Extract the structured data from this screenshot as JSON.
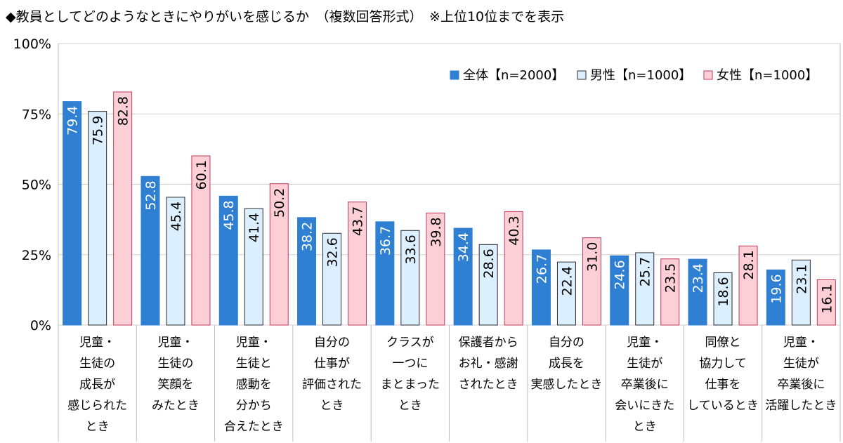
{
  "chart_data": {
    "type": "bar",
    "title": "◆教員としてどのようなときにやりがいを感じるか　（複数回答形式）　※上位10位までを表示",
    "ylim": [
      0,
      100
    ],
    "yticks": [
      {
        "value": 0,
        "label": "0%"
      },
      {
        "value": 25,
        "label": "25%"
      },
      {
        "value": 50,
        "label": "50%"
      },
      {
        "value": 75,
        "label": "75%"
      },
      {
        "value": 100,
        "label": "100%"
      }
    ],
    "categories": [
      "児童・\n生徒の\n成長が\n感じられた\nとき",
      "児童・\n生徒の\n笑顔を\nみたとき",
      "児童・\n生徒と\n感動を\n分かち\n合えたとき",
      "自分の\n仕事が\n評価された\nとき",
      "クラスが\n一つに\nまとまった\nとき",
      "保護者から\nお礼・感謝\nされたとき",
      "自分の\n成長を\n実感したとき",
      "児童・\n生徒が\n卒業後に\n会いにきた\nとき",
      "同僚と\n協力して\n仕事を\nしているとき",
      "児童・\n生徒が\n卒業後に\n活躍したとき"
    ],
    "series": [
      {
        "name": "全体【n=2000】",
        "color": "#2f7fd3",
        "stroke": "#2f7fd3",
        "label_color": "#ffffff",
        "values": [
          79.4,
          52.8,
          45.8,
          38.2,
          36.7,
          34.4,
          26.7,
          24.6,
          23.4,
          19.6
        ]
      },
      {
        "name": "男性【n=1000】",
        "color": "#dcefff",
        "stroke": "#2b2b2b",
        "label_color": "#000000",
        "values": [
          75.9,
          45.4,
          41.4,
          32.6,
          33.6,
          28.6,
          22.4,
          25.7,
          18.6,
          23.1
        ]
      },
      {
        "name": "女性【n=1000】",
        "color": "#fccfd6",
        "stroke": "#c0395a",
        "label_color": "#000000",
        "values": [
          82.8,
          60.1,
          50.2,
          43.7,
          39.8,
          40.3,
          31.0,
          23.5,
          28.1,
          16.1
        ]
      }
    ],
    "value_format": "0.1",
    "legend_position": "top-right",
    "grid": true
  }
}
